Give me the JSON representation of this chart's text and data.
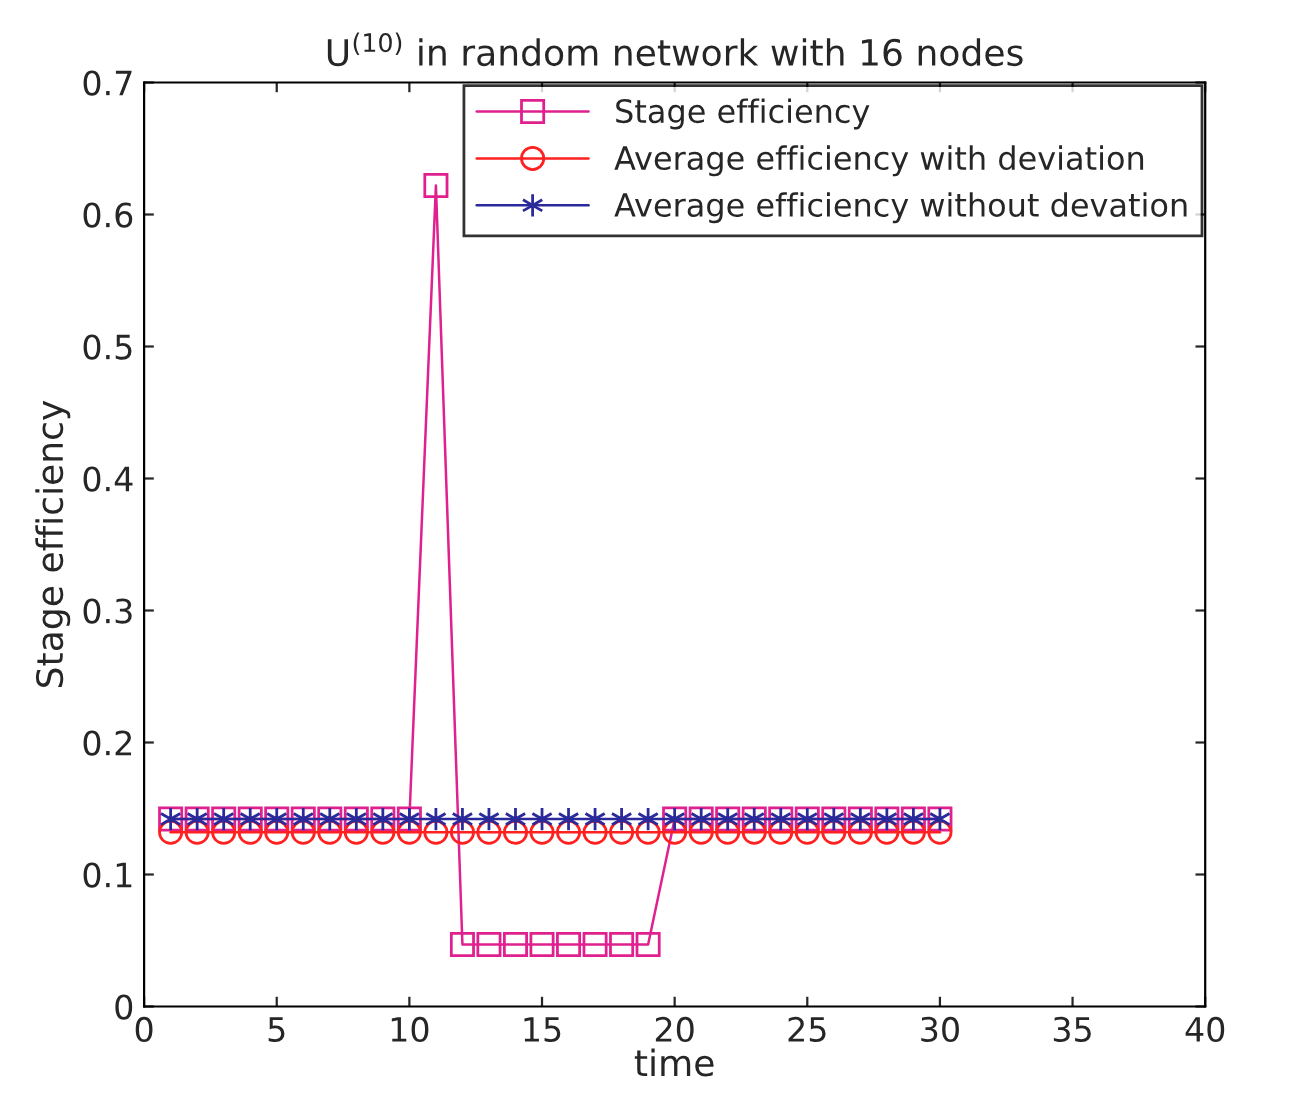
{
  "chart_data": {
    "type": "line",
    "title": "U$^{(10)}$ in random network with 16 nodes",
    "xlabel": "time",
    "ylabel": "Stage efficiency",
    "x": [
      1,
      2,
      3,
      4,
      5,
      6,
      7,
      8,
      9,
      10,
      11,
      12,
      13,
      14,
      15,
      16,
      17,
      18,
      19,
      20,
      21,
      22,
      23,
      24,
      25,
      26,
      27,
      28,
      29,
      30
    ],
    "series": [
      {
        "name": "Stage efficiency",
        "color": "#e0208f",
        "marker": "square",
        "values": [
          0.142,
          0.142,
          0.142,
          0.142,
          0.142,
          0.142,
          0.142,
          0.142,
          0.142,
          0.142,
          0.622,
          0.047,
          0.047,
          0.047,
          0.047,
          0.047,
          0.047,
          0.047,
          0.047,
          0.142,
          0.142,
          0.142,
          0.142,
          0.142,
          0.142,
          0.142,
          0.142,
          0.142,
          0.142,
          0.142
        ]
      },
      {
        "name": "Average efficiency with deviation",
        "color": "#ff2020",
        "marker": "circle",
        "values": [
          0.132,
          0.132,
          0.132,
          0.132,
          0.132,
          0.132,
          0.132,
          0.132,
          0.132,
          0.132,
          0.132,
          0.132,
          0.132,
          0.132,
          0.132,
          0.132,
          0.132,
          0.132,
          0.132,
          0.132,
          0.132,
          0.132,
          0.132,
          0.132,
          0.132,
          0.132,
          0.132,
          0.132,
          0.132,
          0.132
        ]
      },
      {
        "name": "Average efficiency without devation",
        "color": "#2a2a9a",
        "marker": "cross",
        "values": [
          0.142,
          0.142,
          0.142,
          0.142,
          0.142,
          0.142,
          0.142,
          0.142,
          0.142,
          0.142,
          0.142,
          0.142,
          0.142,
          0.142,
          0.142,
          0.142,
          0.142,
          0.142,
          0.142,
          0.142,
          0.142,
          0.142,
          0.142,
          0.142,
          0.142,
          0.142,
          0.142,
          0.142,
          0.142,
          0.142
        ]
      }
    ],
    "xlim": [
      0,
      40
    ],
    "xticks": [
      0,
      5,
      10,
      15,
      20,
      25,
      30,
      35,
      40
    ],
    "ylim": [
      0,
      0.7
    ],
    "yticks": [
      0,
      0.1,
      0.2,
      0.3,
      0.4,
      0.5,
      0.6,
      0.7
    ],
    "grid": false,
    "legend": "top right",
    "line_style": "solid"
  }
}
